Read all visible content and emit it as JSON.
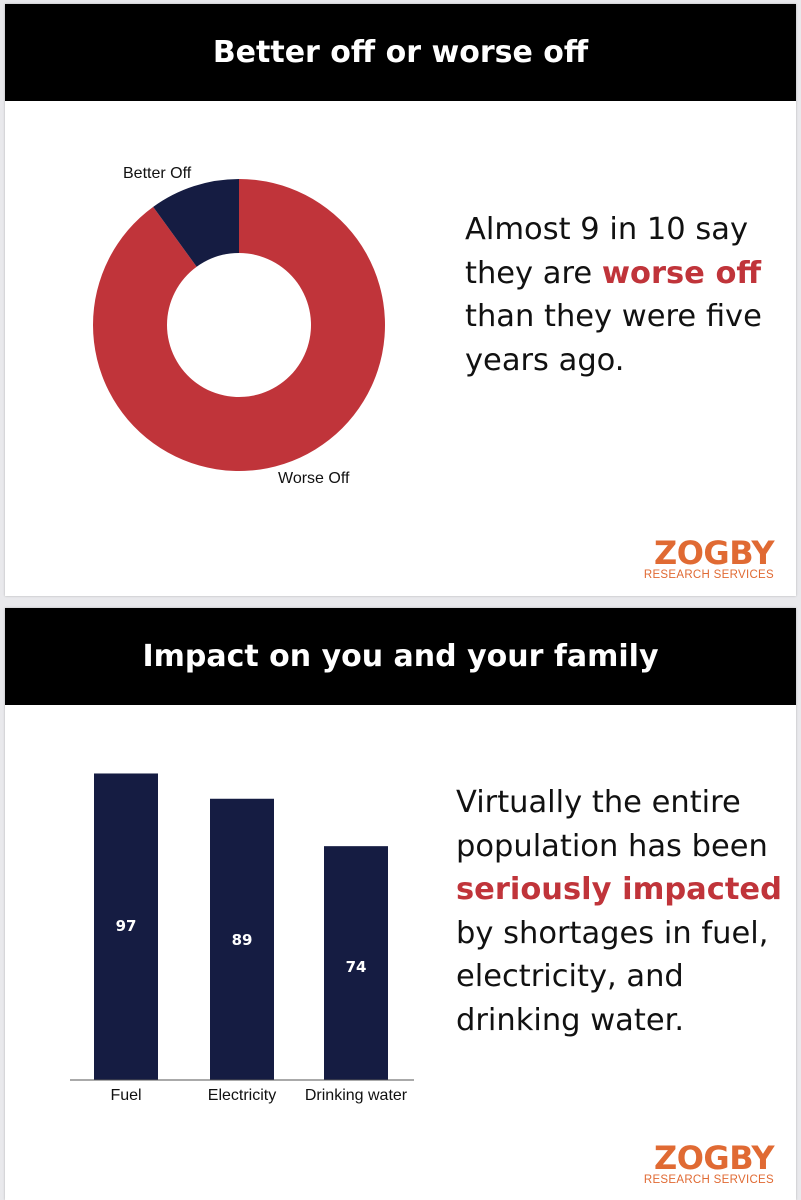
{
  "slides": [
    {
      "title": "Better off or worse off",
      "callout": {
        "before": "Almost 9 in 10 say they are ",
        "highlight": "worse off",
        "after": " than they were five years ago."
      },
      "logo": {
        "brand": "ZOGBY",
        "sub": "RESEARCH SERVICES"
      }
    },
    {
      "title": "Impact on you and your family",
      "callout": {
        "before": "Virtually the entire population has been ",
        "highlight": "seriously impacted",
        "after": " by shortages in fuel, electricity, and drinking water."
      },
      "logo": {
        "brand": "ZOGBY",
        "sub": "RESEARCH SERVICES"
      }
    }
  ],
  "colors": {
    "navy": "#151c42",
    "red": "#c0343a",
    "accent": "#e06a33",
    "banner": "#000000"
  },
  "chart_data": [
    {
      "type": "pie",
      "donut": true,
      "labels": [
        "Better Off",
        "Worse Off"
      ],
      "values": [
        10,
        90
      ],
      "colors": [
        "#151c42",
        "#c0343a"
      ]
    },
    {
      "type": "bar",
      "categories": [
        "Fuel",
        "Electricity",
        "Drinking water"
      ],
      "values": [
        97,
        89,
        74
      ],
      "color": "#151c42",
      "data_labels": true
    }
  ]
}
